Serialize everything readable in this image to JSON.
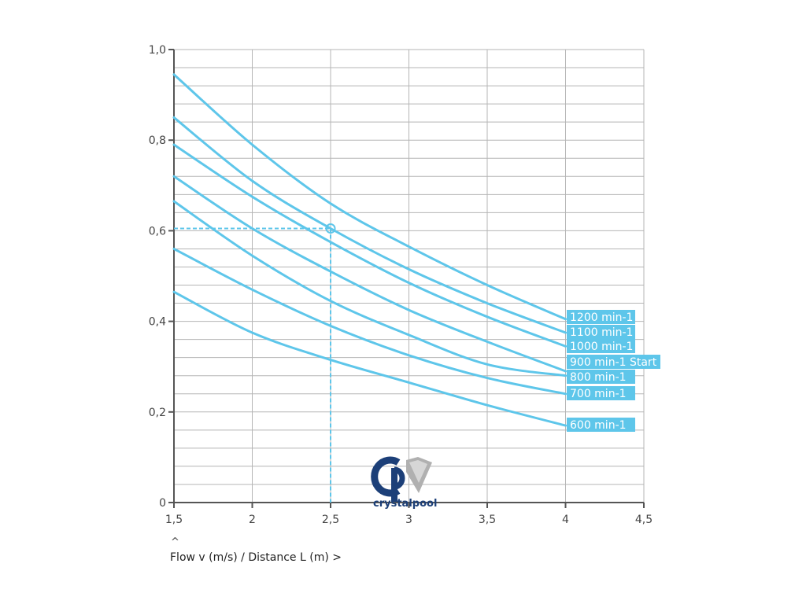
{
  "chart_data": {
    "type": "line",
    "xlabel": "Flow v (m/s) / Distance L (m) >",
    "ylabel": "",
    "xlim": [
      1.5,
      4.5
    ],
    "ylim": [
      0,
      1.0
    ],
    "xticks": [
      "1,5",
      "2",
      "2,5",
      "3",
      "3,5",
      "4",
      "4,5"
    ],
    "yticks": [
      "0",
      "0,2",
      "0,4",
      "0,6",
      "0,8",
      "1,0"
    ],
    "grid": true,
    "x": [
      1.5,
      2.0,
      2.5,
      3.0,
      3.5,
      4.0
    ],
    "series": [
      {
        "name": "1200 min-1",
        "values": [
          0.945,
          0.79,
          0.66,
          0.565,
          0.48,
          0.405
        ]
      },
      {
        "name": "1100 min-1",
        "values": [
          0.85,
          0.71,
          0.605,
          0.515,
          0.44,
          0.375
        ]
      },
      {
        "name": "1000 min-1",
        "values": [
          0.79,
          0.675,
          0.575,
          0.485,
          0.41,
          0.345
        ]
      },
      {
        "name": "900 min-1 Start",
        "values": [
          0.72,
          0.605,
          0.51,
          0.425,
          0.355,
          0.29
        ]
      },
      {
        "name": "800 min-1",
        "values": [
          0.665,
          0.545,
          0.445,
          0.37,
          0.305,
          0.28
        ]
      },
      {
        "name": "700 min-1",
        "values": [
          0.56,
          0.47,
          0.39,
          0.325,
          0.275,
          0.24
        ]
      },
      {
        "name": "600 min-1",
        "values": [
          0.465,
          0.375,
          0.315,
          0.265,
          0.215,
          0.17
        ]
      }
    ],
    "marker": {
      "x": 2.5,
      "y": 0.605
    },
    "line_color": "#5ec6ea",
    "label_bg": "#5ec6ea",
    "grid_color": "#b5b5b5",
    "axis_color": "#555555"
  },
  "logo": {
    "text": "crystalpool",
    "primary_color": "#1c3f78",
    "secondary_color": "#b0b0b0"
  }
}
